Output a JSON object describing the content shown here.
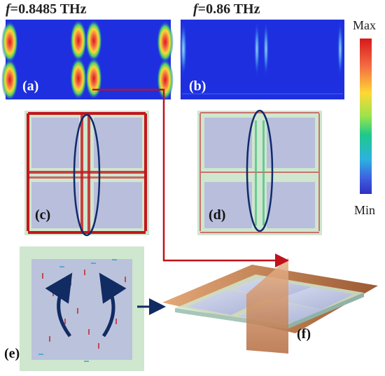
{
  "panels": {
    "a": {
      "title_prefix": "f",
      "title_value": "=0.8485 THz",
      "label": "(a)"
    },
    "b": {
      "title_prefix": "f",
      "title_value": "=0.86 THz",
      "label": "(b)"
    },
    "c": {
      "label": "(c)"
    },
    "d": {
      "label": "(d)"
    },
    "e": {
      "label": "(e)"
    },
    "f": {
      "label": "(f)"
    }
  },
  "colorbar": {
    "max_label": "Max",
    "min_label": "Min",
    "colors": [
      "#d7191c",
      "#f46d43",
      "#fdd835",
      "#9be34d",
      "#1ec98b",
      "#2cb1e0",
      "#3d5fe0",
      "#3030c0"
    ]
  },
  "colors": {
    "field_bg": "#1e2fe0",
    "arrow_red": "#c4161c",
    "ellipse": "#0f2a6b",
    "connector": "#c0121a",
    "rotation_arrow": "#112b63",
    "plate": "#b8c2e0",
    "frame": "#cfe6cf",
    "substrate": "#c98a5a"
  }
}
